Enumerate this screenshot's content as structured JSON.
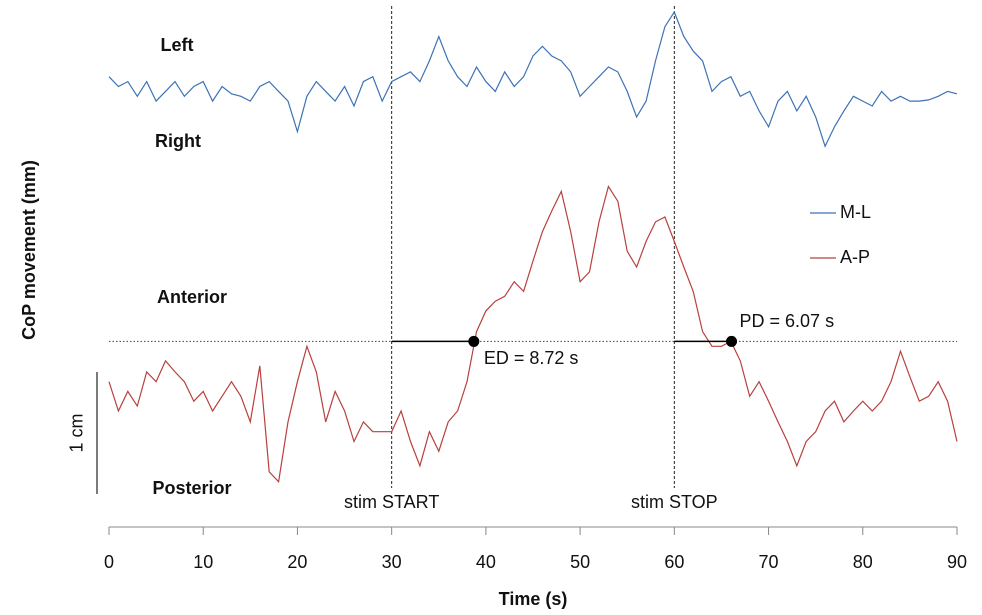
{
  "chart_data": {
    "type": "line",
    "y_label": "CoP movement (mm)",
    "x_label": "Time (s)",
    "x": [
      0,
      1,
      2,
      3,
      4,
      5,
      6,
      7,
      8,
      9,
      10,
      11,
      12,
      13,
      14,
      15,
      16,
      17,
      18,
      19,
      20,
      21,
      22,
      23,
      24,
      25,
      26,
      27,
      28,
      29,
      30,
      31,
      32,
      33,
      34,
      35,
      36,
      37,
      38,
      39,
      40,
      41,
      42,
      43,
      44,
      45,
      46,
      47,
      48,
      49,
      50,
      51,
      52,
      53,
      54,
      55,
      56,
      57,
      58,
      59,
      60,
      61,
      62,
      63,
      64,
      65,
      66,
      67,
      68,
      69,
      70,
      71,
      72,
      73,
      74,
      75,
      76,
      77,
      78,
      79,
      80,
      81,
      82,
      83,
      84,
      85,
      86,
      87,
      88,
      89,
      90
    ],
    "series": [
      {
        "name": "M-L",
        "color": "#3d72b4",
        "values": [
          21.7,
          20.9,
          21.3,
          20.1,
          21.3,
          19.7,
          20.5,
          21.3,
          20.1,
          20.9,
          21.3,
          19.7,
          20.9,
          20.3,
          20.1,
          19.7,
          20.9,
          21.3,
          20.5,
          19.7,
          17.2,
          20.1,
          21.3,
          20.5,
          19.7,
          20.9,
          19.3,
          21.3,
          21.7,
          19.7,
          21.3,
          21.7,
          22.1,
          21.3,
          23.0,
          25.0,
          23.0,
          21.7,
          20.9,
          22.5,
          21.3,
          20.5,
          22.1,
          20.9,
          21.7,
          23.4,
          24.2,
          23.4,
          23.0,
          22.1,
          20.1,
          20.9,
          21.7,
          22.5,
          22.1,
          20.5,
          18.4,
          19.7,
          23.0,
          25.8,
          27.0,
          25.0,
          23.8,
          23.0,
          20.5,
          21.3,
          21.7,
          20.1,
          20.5,
          18.9,
          17.6,
          19.7,
          20.5,
          18.9,
          20.1,
          18.4,
          16.0,
          17.6,
          18.9,
          20.1,
          19.7,
          19.3,
          20.5,
          19.7,
          20.1,
          19.7,
          19.7,
          19.8,
          20.1,
          20.5,
          20.3
        ]
      },
      {
        "name": "A-P",
        "color": "#b8403d",
        "values": [
          -3.3,
          -5.7,
          -4.1,
          -5.3,
          -2.5,
          -3.3,
          -1.6,
          -2.5,
          -3.3,
          -4.9,
          -4.1,
          -5.7,
          -4.5,
          -3.3,
          -4.5,
          -6.6,
          -2.0,
          -10.7,
          -11.5,
          -6.6,
          -3.3,
          -0.4,
          -2.5,
          -6.6,
          -4.1,
          -5.7,
          -8.2,
          -6.6,
          -7.4,
          -7.4,
          -7.4,
          -5.7,
          -8.2,
          -10.2,
          -7.4,
          -9.0,
          -6.6,
          -5.7,
          -3.3,
          0.8,
          2.5,
          3.3,
          3.7,
          4.9,
          4.1,
          6.6,
          9.0,
          10.7,
          12.3,
          9.0,
          4.9,
          5.7,
          9.8,
          12.7,
          11.5,
          7.4,
          6.1,
          8.2,
          9.8,
          10.2,
          8.2,
          6.1,
          4.1,
          0.8,
          -0.4,
          -0.4,
          0,
          -1.6,
          -4.5,
          -3.3,
          -4.9,
          -6.6,
          -8.2,
          -10.2,
          -8.2,
          -7.4,
          -5.7,
          -4.9,
          -6.6,
          -5.7,
          -4.9,
          -5.7,
          -4.9,
          -3.3,
          -0.8,
          -2.9,
          -4.9,
          -4.5,
          -3.3,
          -4.9,
          -8.2
        ]
      }
    ],
    "xlim": [
      0,
      90
    ],
    "xticks": [
      0,
      10,
      20,
      30,
      40,
      50,
      60,
      70,
      80,
      90
    ],
    "ylim": [
      -13,
      27.5
    ],
    "baseline": 0,
    "scale_bar": {
      "length": 10,
      "label": "1 cm"
    },
    "stim_lines": [
      {
        "x": 30,
        "label": "stim START"
      },
      {
        "x": 60,
        "label": "stim STOP"
      }
    ],
    "delays": [
      {
        "start": 30,
        "value": 8.72,
        "label": "ED = 8.72 s"
      },
      {
        "start": 60,
        "value": 6.07,
        "label": "PD = 6.07 s"
      }
    ],
    "direction_labels": [
      {
        "text": "Left",
        "color": "#2f5b93"
      },
      {
        "text": "Right",
        "color": "#2f5b93"
      },
      {
        "text": "Anterior",
        "color": "#c0504d"
      },
      {
        "text": "Posterior",
        "color": "#c0504d"
      }
    ]
  }
}
